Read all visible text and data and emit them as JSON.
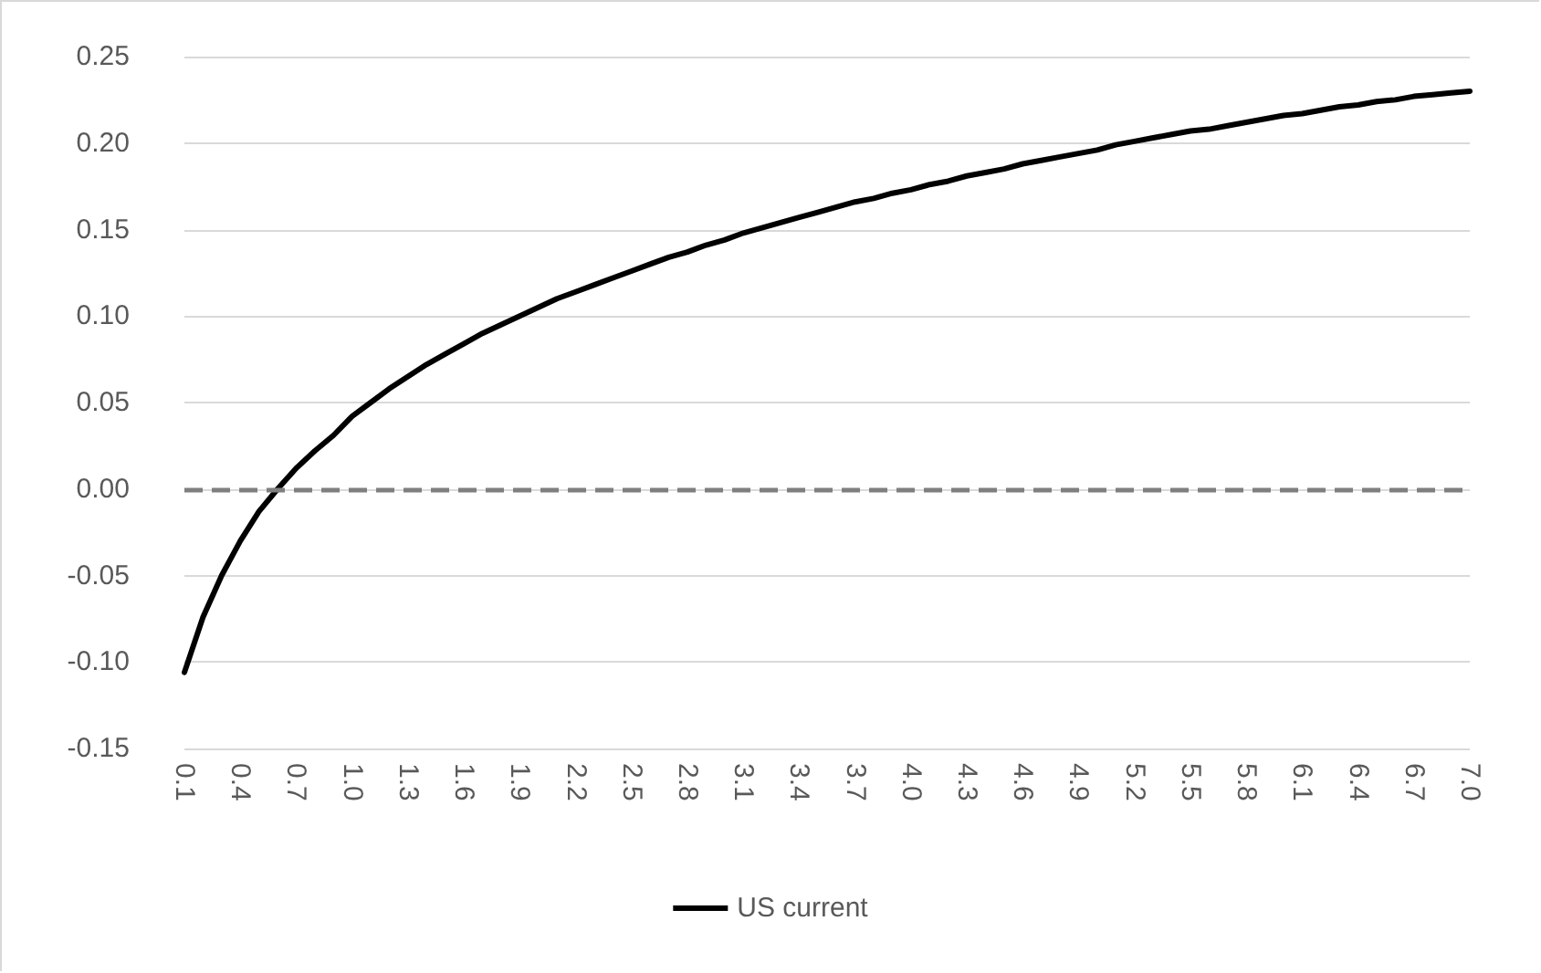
{
  "chart_data": {
    "type": "line",
    "categories": [
      "0.1",
      null,
      null,
      "0.4",
      null,
      null,
      "0.7",
      null,
      null,
      "1.0",
      null,
      null,
      "1.3",
      null,
      null,
      "1.6",
      null,
      null,
      "1.9",
      null,
      null,
      "2.2",
      null,
      null,
      "2.5",
      null,
      null,
      "2.8",
      null,
      null,
      "3.1",
      null,
      null,
      "3.4",
      null,
      null,
      "3.7",
      null,
      null,
      "4.0",
      null,
      null,
      "4.3",
      null,
      null,
      "4.6",
      null,
      null,
      "4.9",
      null,
      null,
      "5.2",
      null,
      null,
      "5.5",
      null,
      null,
      "5.8",
      null,
      null,
      "6.1",
      null,
      null,
      "6.4",
      null,
      null,
      "6.7",
      null,
      null,
      "7.0"
    ],
    "series": [
      {
        "name": "US current",
        "color": "#000000",
        "values": [
          -0.106,
          -0.074,
          -0.05,
          -0.03,
          -0.013,
          0.0,
          0.012,
          0.022,
          0.031,
          0.042,
          0.05,
          0.058,
          0.065,
          0.072,
          0.078,
          0.084,
          0.09,
          0.095,
          0.1,
          0.105,
          0.11,
          0.114,
          0.118,
          0.122,
          0.126,
          0.13,
          0.134,
          0.137,
          0.141,
          0.144,
          0.148,
          0.151,
          0.154,
          0.157,
          0.16,
          0.163,
          0.166,
          0.168,
          0.171,
          0.173,
          0.176,
          0.178,
          0.181,
          0.183,
          0.185,
          0.188,
          0.19,
          0.192,
          0.194,
          0.196,
          0.199,
          0.201,
          0.203,
          0.205,
          0.207,
          0.208,
          0.21,
          0.212,
          0.214,
          0.216,
          0.217,
          0.219,
          0.221,
          0.222,
          0.224,
          0.225,
          0.227,
          0.228,
          0.229,
          0.23
        ]
      }
    ],
    "ylim": [
      -0.15,
      0.25
    ],
    "yticks": [
      {
        "value": -0.15,
        "label": "-0.15"
      },
      {
        "value": -0.1,
        "label": "-0.10"
      },
      {
        "value": -0.05,
        "label": "-0.05"
      },
      {
        "value": 0,
        "label": "0.00"
      },
      {
        "value": 0.05,
        "label": "0.05"
      },
      {
        "value": 0.1,
        "label": "0.10"
      },
      {
        "value": 0.15,
        "label": "0.15"
      },
      {
        "value": 0.2,
        "label": "0.20"
      },
      {
        "value": 0.25,
        "label": "0.25"
      }
    ],
    "ref_lines": [
      {
        "axis": "y",
        "value": 0,
        "color": "#7f7f7f",
        "line_style": "dashed"
      }
    ],
    "grid": "y",
    "legend": "bottom",
    "marker": "none",
    "line_style": "solid"
  }
}
